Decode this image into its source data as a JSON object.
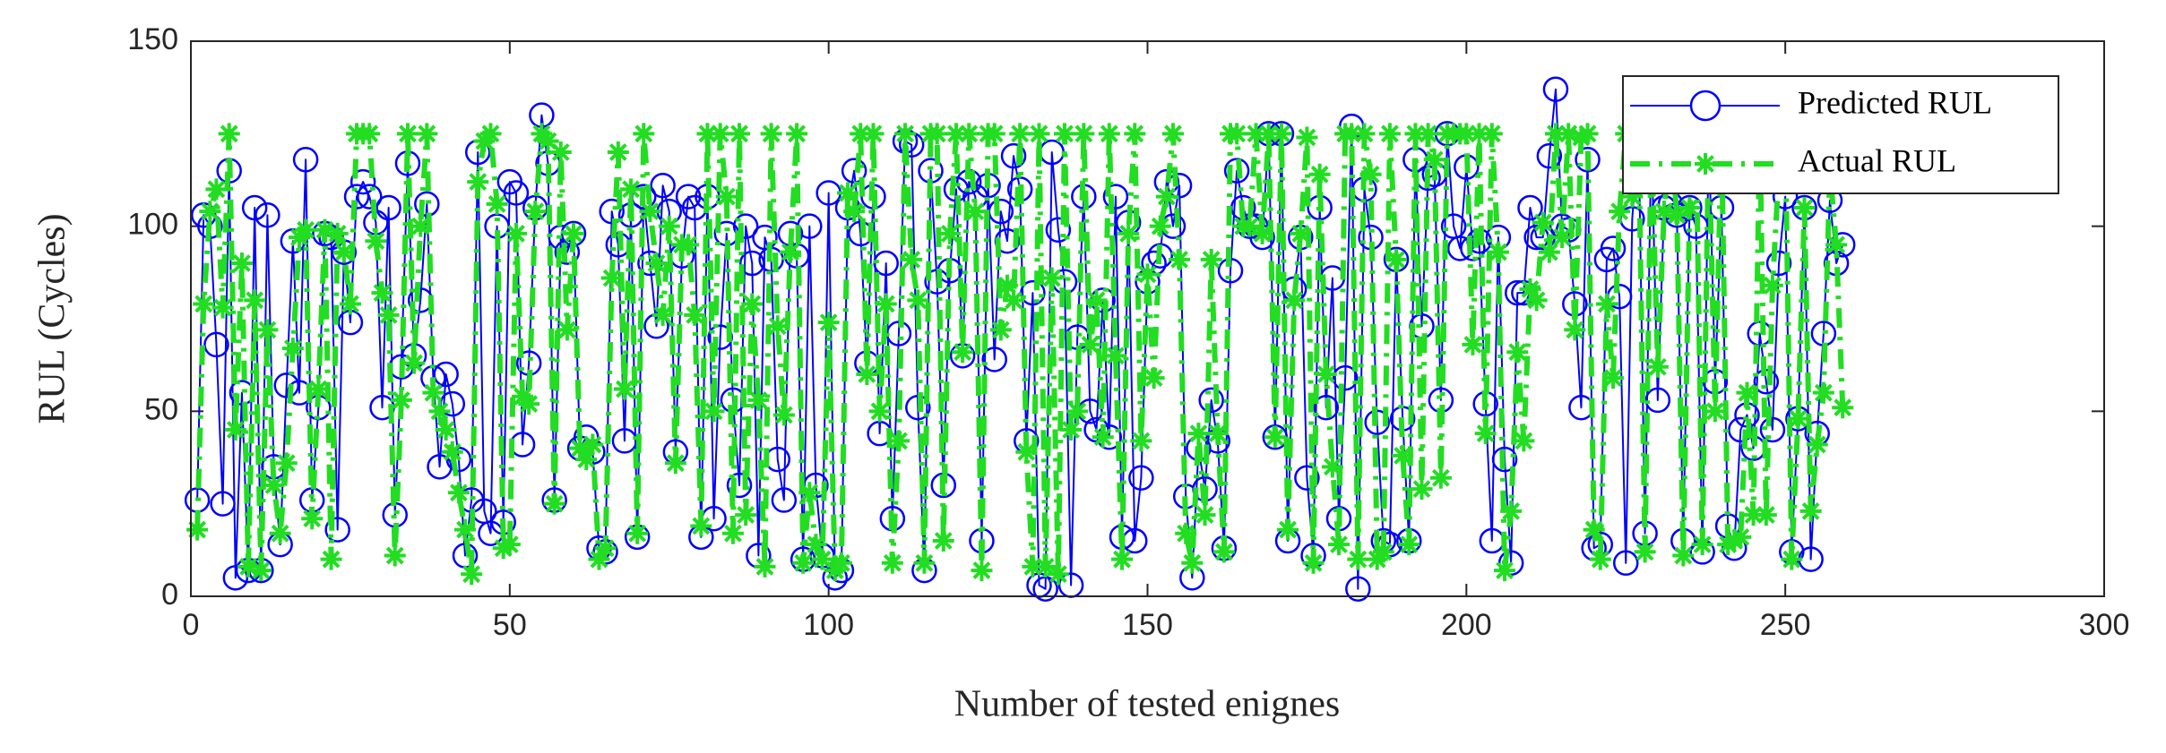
{
  "chart_data": {
    "type": "line",
    "xlabel": "Number of tested enignes",
    "ylabel": "RUL (Cycles)",
    "xlim": [
      0,
      300
    ],
    "xticks": [
      0,
      50,
      100,
      150,
      200,
      250,
      300
    ],
    "ylim": [
      0,
      150
    ],
    "yticks": [
      0,
      50,
      100,
      150
    ],
    "legend": "top-right",
    "x": [
      1,
      2,
      3,
      4,
      5,
      6,
      7,
      8,
      9,
      10,
      11,
      12,
      13,
      14,
      15,
      16,
      17,
      18,
      19,
      20,
      21,
      22,
      23,
      24,
      25,
      26,
      27,
      28,
      29,
      30,
      31,
      32,
      33,
      34,
      35,
      36,
      37,
      38,
      39,
      40,
      41,
      42,
      43,
      44,
      45,
      46,
      47,
      48,
      49,
      50,
      51,
      52,
      53,
      54,
      55,
      56,
      57,
      58,
      59,
      60,
      61,
      62,
      63,
      64,
      65,
      66,
      67,
      68,
      69,
      70,
      71,
      72,
      73,
      74,
      75,
      76,
      77,
      78,
      79,
      80,
      81,
      82,
      83,
      84,
      85,
      86,
      87,
      88,
      89,
      90,
      91,
      92,
      93,
      94,
      95,
      96,
      97,
      98,
      99,
      100,
      101,
      102,
      103,
      104,
      105,
      106,
      107,
      108,
      109,
      110,
      111,
      112,
      113,
      114,
      115,
      116,
      117,
      118,
      119,
      120,
      121,
      122,
      123,
      124,
      125,
      126,
      127,
      128,
      129,
      130,
      131,
      132,
      133,
      134,
      135,
      136,
      137,
      138,
      139,
      140,
      141,
      142,
      143,
      144,
      145,
      146,
      147,
      148,
      149,
      150,
      151,
      152,
      153,
      154,
      155,
      156,
      157,
      158,
      159,
      160,
      161,
      162,
      163,
      164,
      165,
      166,
      167,
      168,
      169,
      170,
      171,
      172,
      173,
      174,
      175,
      176,
      177,
      178,
      179,
      180,
      181,
      182,
      183,
      184,
      185,
      186,
      187,
      188,
      189,
      190,
      191,
      192,
      193,
      194,
      195,
      196,
      197,
      198,
      199,
      200,
      201,
      202,
      203,
      204,
      205,
      206,
      207,
      208,
      209,
      210,
      211,
      212,
      213,
      214,
      215,
      216,
      217,
      218,
      219,
      220,
      221,
      222,
      223,
      224,
      225,
      226,
      227,
      228,
      229,
      230,
      231,
      232,
      233,
      234,
      235,
      236,
      237,
      238,
      239,
      240,
      241,
      242,
      243,
      244,
      245,
      246,
      247,
      248,
      249,
      250,
      251,
      252,
      253,
      254,
      255,
      256,
      257,
      258,
      259
    ],
    "series": [
      {
        "name": "Predicted RUL",
        "color": "#0000ff",
        "marker": "circle",
        "linestyle": "solid",
        "values": [
          26,
          103,
          100,
          68,
          25,
          115,
          5,
          55,
          7,
          105,
          7,
          103,
          35,
          14,
          57,
          96,
          55,
          118,
          26,
          51,
          98,
          97,
          18,
          93,
          74,
          108,
          112,
          108,
          101,
          51,
          105,
          22,
          62,
          117,
          65,
          80,
          106,
          59,
          35,
          60,
          52,
          37,
          11,
          26,
          120,
          23,
          17,
          100,
          20,
          112,
          109,
          41,
          63,
          105,
          130,
          117,
          26,
          97,
          93,
          98,
          40,
          43,
          39,
          13,
          12,
          104,
          95,
          42,
          103,
          16,
          108,
          90,
          73,
          111,
          104,
          39,
          92,
          108,
          105,
          16,
          108,
          21,
          70,
          98,
          53,
          30,
          100,
          90,
          11,
          97,
          91,
          37,
          26,
          98,
          92,
          10,
          100,
          30,
          11,
          109,
          5,
          7,
          105,
          115,
          98,
          63,
          108,
          44,
          90,
          21,
          71,
          123,
          122,
          51,
          7,
          115,
          85,
          30,
          88,
          110,
          65,
          112,
          108,
          15,
          111,
          64,
          104,
          96,
          119,
          110,
          42,
          82,
          3,
          2,
          120,
          99,
          85,
          3,
          70,
          108,
          50,
          45,
          80,
          43,
          108,
          16,
          101,
          15,
          32,
          85,
          90,
          92,
          112,
          100,
          111,
          27,
          5,
          40,
          29,
          53,
          42,
          13,
          88,
          115,
          105,
          100,
          100,
          97,
          125,
          43,
          125,
          15,
          83,
          97,
          32,
          11,
          105,
          51,
          86,
          21,
          59,
          127,
          2,
          110,
          97,
          47,
          15,
          14,
          91,
          48,
          15,
          118,
          73,
          113,
          114,
          53,
          125,
          100,
          94,
          116,
          94,
          96,
          52,
          15,
          97,
          37,
          9,
          82,
          82,
          105,
          97,
          97,
          119,
          137,
          100,
          99,
          79,
          51,
          118,
          13,
          14,
          91,
          94,
          81,
          9,
          102,
          125,
          17,
          125,
          53,
          105,
          106,
          103,
          15,
          105,
          100,
          12,
          125,
          58,
          105,
          19,
          13,
          45,
          49,
          40,
          71,
          58,
          45,
          90,
          108,
          12,
          48,
          105,
          10,
          44,
          71,
          107,
          90,
          95
        ]
      },
      {
        "name": "Actual RUL",
        "color": "#22dd22",
        "marker": "asterisk",
        "linestyle": "dashdot",
        "values": [
          18,
          79,
          104,
          110,
          78,
          125,
          45,
          90,
          8,
          80,
          7,
          72,
          30,
          17,
          36,
          67,
          97,
          99,
          21,
          56,
          99,
          10,
          98,
          93,
          79,
          125,
          125,
          125,
          96,
          82,
          76,
          11,
          53,
          125,
          63,
          100,
          125,
          55,
          50,
          45,
          39,
          28,
          18,
          6,
          112,
          123,
          125,
          106,
          13,
          14,
          98,
          54,
          52,
          104,
          125,
          123,
          25,
          120,
          72,
          98,
          40,
          37,
          41,
          10,
          13,
          86,
          120,
          56,
          110,
          17,
          125,
          104,
          90,
          76,
          100,
          36,
          95,
          95,
          76,
          19,
          125,
          50,
          125,
          108,
          17,
          125,
          22,
          79,
          53,
          8,
          125,
          73,
          49,
          93,
          125,
          9,
          28,
          14,
          10,
          74,
          7,
          9,
          109,
          104,
          125,
          60,
          125,
          50,
          79,
          9,
          42,
          125,
          91,
          80,
          9,
          125,
          125,
          15,
          98,
          125,
          66,
          125,
          104,
          7,
          125,
          125,
          72,
          84,
          80,
          125,
          39,
          8,
          125,
          8,
          86,
          6,
          125,
          45,
          50,
          125,
          68,
          80,
          43,
          125,
          65,
          10,
          98,
          125,
          42,
          87,
          59,
          100,
          108,
          125,
          91,
          17,
          9,
          44,
          22,
          91,
          44,
          12,
          125,
          125,
          100,
          100,
          125,
          98,
          125,
          43,
          125,
          18,
          80,
          98,
          124,
          9,
          114,
          60,
          35,
          14,
          125,
          125,
          10,
          125,
          114,
          10,
          12,
          125,
          91,
          38,
          14,
          125,
          29,
          125,
          118,
          32,
          125,
          125,
          125,
          125,
          68,
          125,
          44,
          125,
          93,
          7,
          23,
          66,
          42,
          83,
          80,
          101,
          93,
          125,
          97,
          125,
          72,
          124,
          125,
          18,
          10,
          79,
          59,
          104,
          125,
          108,
          125,
          12,
          125,
          62,
          104,
          125,
          103,
          11,
          105,
          125,
          14,
          125,
          50,
          125,
          14,
          15,
          16,
          55,
          22,
          125,
          22,
          84,
          115,
          125,
          10,
          48,
          105,
          23,
          41,
          55,
          115,
          95,
          51
        ]
      }
    ]
  }
}
